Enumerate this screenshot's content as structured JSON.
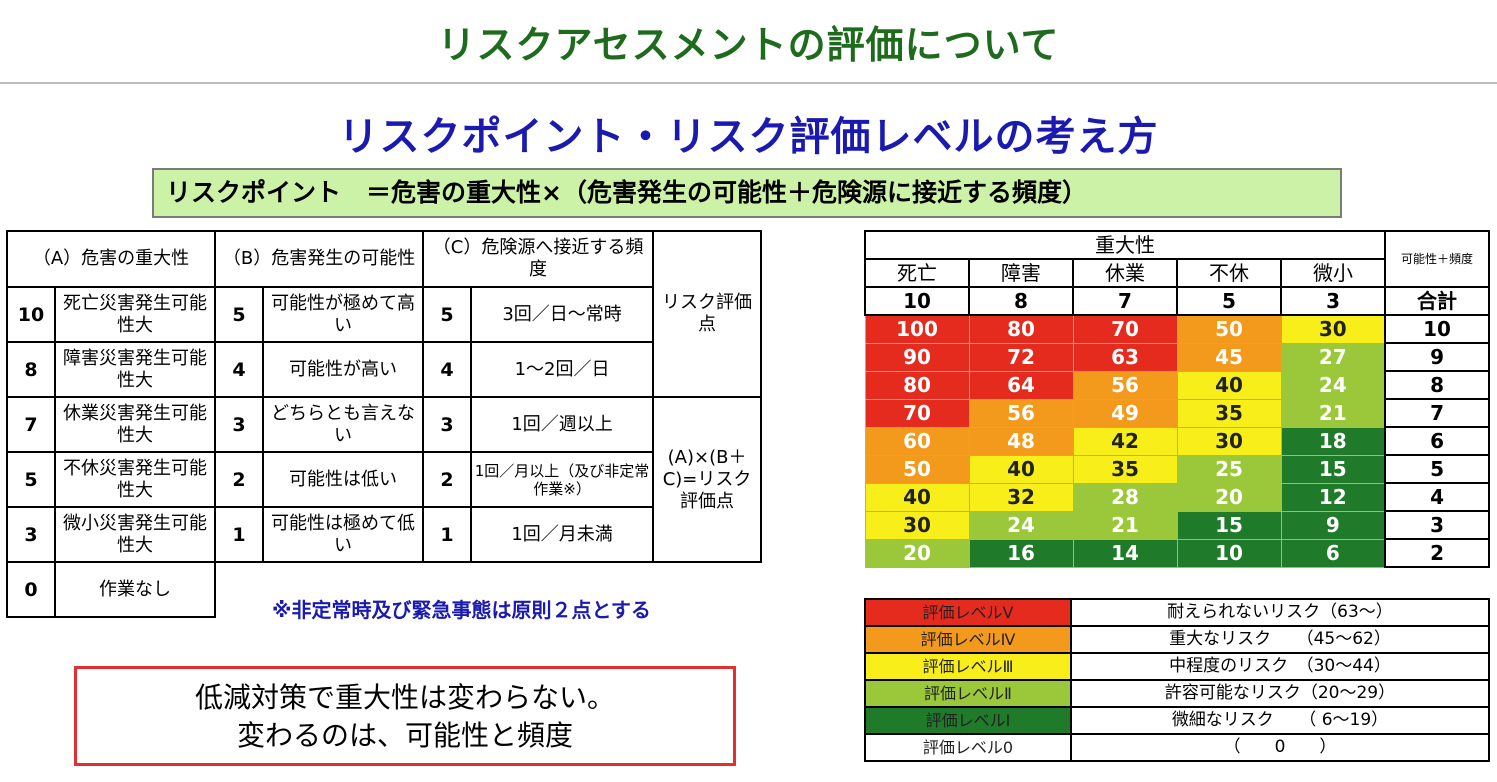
{
  "title": "リスクアセスメントの評価について",
  "subtitle": "リスクポイント・リスク評価レベルの考え方",
  "formula": "リスクポイント　＝危害の重大性×（危害発生の可能性＋危険源に接近する頻度）",
  "left_table": {
    "headers": {
      "a": "（A）危害の重大性",
      "b": "（B）危害発生の可能性",
      "c": "（C）危険源へ接近する頻度",
      "score_top": "リスク評価点",
      "score_bottom": "(A)×(B＋C)=リスク評価点"
    },
    "rows": [
      {
        "a_pt": "10",
        "a_txt": "死亡災害発生可能性大",
        "b_pt": "5",
        "b_txt": "可能性が極めて高い",
        "c_pt": "5",
        "c_txt": "3回／日～常時"
      },
      {
        "a_pt": "8",
        "a_txt": "障害災害発生可能性大",
        "b_pt": "4",
        "b_txt": "可能性が高い",
        "c_pt": "4",
        "c_txt": "1～2回／日"
      },
      {
        "a_pt": "7",
        "a_txt": "休業災害発生可能性大",
        "b_pt": "3",
        "b_txt": "どちらとも言えない",
        "c_pt": "3",
        "c_txt": "1回／週以上"
      },
      {
        "a_pt": "5",
        "a_txt": "不休災害発生可能性大",
        "b_pt": "2",
        "b_txt": "可能性は低い",
        "c_pt": "2",
        "c_txt": "1回／月以上（及び非定常作業※）"
      },
      {
        "a_pt": "3",
        "a_txt": "微小災害発生可能性大",
        "b_pt": "1",
        "b_txt": "可能性は極めて低い",
        "c_pt": "1",
        "c_txt": "1回／月未満"
      }
    ],
    "extra_row": {
      "a_pt": "0",
      "a_txt": "作業なし"
    }
  },
  "note": "※非定常時及び緊急事態は原則２点とする",
  "message": {
    "line1": "低減対策で重大性は変わらない。",
    "line2": "変わるのは、可能性と頻度"
  },
  "matrix": {
    "header": "重大性",
    "sum_header": "可能性＋頻度",
    "sum_label": "合計",
    "categories": [
      "死亡",
      "障害",
      "休業",
      "不休",
      "微小"
    ],
    "severity": [
      "10",
      "8",
      "7",
      "5",
      "3"
    ],
    "sums": [
      "10",
      "9",
      "8",
      "7",
      "6",
      "5",
      "4",
      "3",
      "2"
    ],
    "values": [
      [
        "100",
        "80",
        "70",
        "50",
        "30"
      ],
      [
        "90",
        "72",
        "63",
        "45",
        "27"
      ],
      [
        "80",
        "64",
        "56",
        "40",
        "24"
      ],
      [
        "70",
        "56",
        "49",
        "35",
        "21"
      ],
      [
        "60",
        "48",
        "42",
        "30",
        "18"
      ],
      [
        "50",
        "40",
        "35",
        "25",
        "15"
      ],
      [
        "40",
        "32",
        "28",
        "20",
        "12"
      ],
      [
        "30",
        "24",
        "21",
        "15",
        "9"
      ],
      [
        "20",
        "16",
        "14",
        "10",
        "6"
      ]
    ],
    "level_colors": {
      "V": "#e52b1e",
      "IV": "#f39a1c",
      "III": "#f7ee1a",
      "II": "#9bc83a",
      "I": "#1f7a2a"
    }
  },
  "legend": [
    {
      "level": "評価レベルⅤ",
      "desc": "耐えられないリスク（63～）",
      "color": "#e52b1e"
    },
    {
      "level": "評価レベルⅣ",
      "desc": "重大なリスク　　（45～62）",
      "color": "#f39a1c"
    },
    {
      "level": "評価レベルⅢ",
      "desc": "中程度のリスク　（30～44）",
      "color": "#f7ee1a"
    },
    {
      "level": "評価レベルⅡ",
      "desc": "許容可能なリスク（20～29）",
      "color": "#9bc83a"
    },
    {
      "level": "評価レベルⅠ",
      "desc": "微細なリスク　　（ 6～19）",
      "color": "#1f7a2a"
    },
    {
      "level": "評価レベル0",
      "desc": "（　　0　　）",
      "color": "#ffffff"
    }
  ]
}
